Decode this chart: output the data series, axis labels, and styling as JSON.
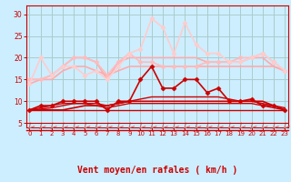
{
  "x": [
    0,
    1,
    2,
    3,
    4,
    5,
    6,
    7,
    8,
    9,
    10,
    11,
    12,
    13,
    14,
    15,
    16,
    17,
    18,
    19,
    20,
    21,
    22,
    23
  ],
  "lines": [
    {
      "y": [
        8,
        8,
        8,
        8,
        8,
        8,
        8,
        8,
        8,
        8,
        8,
        8,
        8,
        8,
        8,
        8,
        8,
        8,
        8,
        8,
        8,
        8,
        8,
        8
      ],
      "color": "#cc0000",
      "lw": 1.0,
      "marker": null,
      "zorder": 4
    },
    {
      "y": [
        8,
        8.5,
        9,
        9.5,
        9.5,
        9.5,
        9,
        8.5,
        9,
        9.5,
        9.5,
        9.5,
        9.5,
        9.5,
        9.5,
        9.5,
        9.5,
        9.5,
        9.5,
        9.5,
        9.5,
        9,
        8.5,
        8
      ],
      "color": "#cc0000",
      "lw": 1.0,
      "marker": null,
      "zorder": 4
    },
    {
      "y": [
        8,
        8,
        8,
        8,
        8.5,
        9,
        9,
        9,
        9.5,
        10,
        10,
        10,
        10,
        10,
        10,
        10,
        10,
        10,
        10,
        10,
        10,
        10,
        9,
        8
      ],
      "color": "#cc0000",
      "lw": 1.2,
      "marker": null,
      "zorder": 4
    },
    {
      "y": [
        8,
        8.2,
        8.5,
        9,
        9.5,
        9.5,
        9.5,
        9,
        9.5,
        10,
        10.5,
        11,
        11,
        11,
        11,
        11,
        11,
        11,
        10.5,
        10,
        10,
        9.5,
        9,
        8.5
      ],
      "color": "#cc0000",
      "lw": 1.0,
      "marker": null,
      "zorder": 4
    },
    {
      "y": [
        8,
        9,
        9,
        10,
        10,
        10,
        10,
        8,
        10,
        10,
        15,
        18,
        13,
        13,
        15,
        15,
        12,
        13,
        10,
        10,
        10.5,
        9,
        9,
        8
      ],
      "color": "#cc0000",
      "lw": 1.2,
      "marker": "D",
      "markersize": 2.5,
      "zorder": 5
    },
    {
      "y": [
        14,
        15,
        15,
        17,
        18,
        18,
        17,
        16,
        17,
        18,
        18,
        18,
        18,
        18,
        18,
        18,
        18,
        18,
        18,
        18,
        18,
        18,
        18,
        17
      ],
      "color": "#ffaaaa",
      "lw": 1.2,
      "marker": null,
      "zorder": 2
    },
    {
      "y": [
        15,
        15,
        16,
        18,
        20,
        20,
        19,
        15,
        19,
        20,
        20,
        20,
        20,
        20,
        20,
        20,
        19,
        19,
        19,
        19,
        20,
        20,
        18,
        17
      ],
      "color": "#ffaaaa",
      "lw": 1.2,
      "marker": null,
      "zorder": 2
    },
    {
      "y": [
        15,
        15,
        16,
        18,
        20,
        20,
        19,
        16,
        19,
        21,
        19,
        19,
        18,
        18,
        18,
        18,
        19,
        19,
        19,
        20,
        20,
        21,
        19,
        17
      ],
      "color": "#ffbbbb",
      "lw": 1.2,
      "marker": "D",
      "markersize": 2.5,
      "zorder": 3
    },
    {
      "y": [
        14,
        20,
        16,
        18,
        18,
        16,
        17,
        15,
        18,
        21,
        22,
        29,
        27,
        21,
        28,
        23,
        21,
        21,
        19,
        19,
        20,
        21,
        19,
        17
      ],
      "color": "#ffcccc",
      "lw": 1.2,
      "marker": "D",
      "markersize": 2.5,
      "zorder": 3
    }
  ],
  "xlabel": "Vent moyen/en rafales ( km/h )",
  "ylim": [
    4,
    32
  ],
  "xlim": [
    -0.3,
    23.3
  ],
  "yticks": [
    5,
    10,
    15,
    20,
    25,
    30
  ],
  "xticks": [
    0,
    1,
    2,
    3,
    4,
    5,
    6,
    7,
    8,
    9,
    10,
    11,
    12,
    13,
    14,
    15,
    16,
    17,
    18,
    19,
    20,
    21,
    22,
    23
  ],
  "bg_color": "#cceeff",
  "grid_color": "#aacccc",
  "axis_color": "#cc0000",
  "tick_color": "#cc0000",
  "label_color": "#cc0000",
  "arrow_color": "#cc6666"
}
